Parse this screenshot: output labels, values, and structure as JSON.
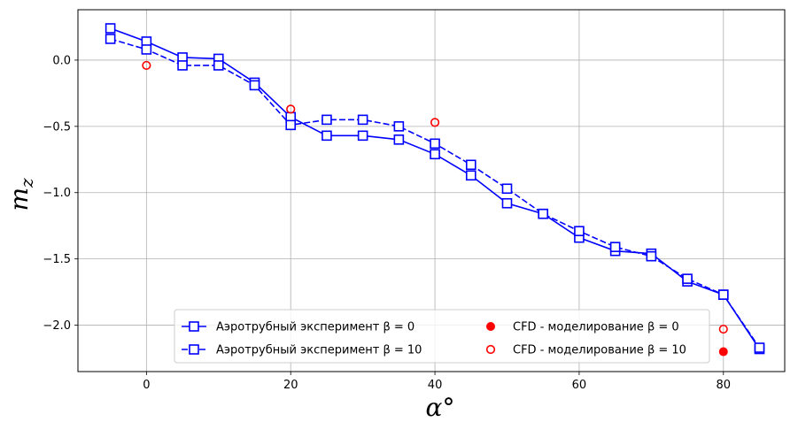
{
  "chart_data": {
    "type": "line",
    "xlabel": "α°",
    "ylabel": "m_z",
    "xlim": [
      -9.5,
      88.5
    ],
    "ylim": [
      -2.35,
      0.38
    ],
    "xticks": [
      0,
      20,
      40,
      60,
      80
    ],
    "yticks": [
      0.0,
      -0.5,
      -1.0,
      -1.5,
      -2.0
    ],
    "xtick_labels": [
      "0",
      "20",
      "40",
      "60",
      "80"
    ],
    "ytick_labels": [
      "0.0",
      "−0.5",
      "−1.0",
      "−1.5",
      "−2.0"
    ],
    "grid": true,
    "legend_position": "bottom-center",
    "series": [
      {
        "name": "Аэротрубный эксперимент β = 0",
        "style": "solid",
        "marker": "square-open",
        "color": "#0000ff",
        "x": [
          -5,
          0,
          5,
          10,
          15,
          20,
          25,
          30,
          35,
          40,
          45,
          50,
          55,
          60,
          65,
          70,
          75,
          80,
          85
        ],
        "y": [
          0.24,
          0.14,
          0.02,
          0.01,
          -0.17,
          -0.43,
          -0.57,
          -0.57,
          -0.6,
          -0.71,
          -0.87,
          -1.08,
          -1.16,
          -1.34,
          -1.44,
          -1.46,
          -1.67,
          -1.77,
          -2.18
        ]
      },
      {
        "name": "Аэротрубный эксперимент β = 10",
        "style": "dashed",
        "marker": "square-open",
        "color": "#0000ff",
        "x": [
          -5,
          0,
          5,
          10,
          15,
          20,
          25,
          30,
          35,
          40,
          45,
          50,
          55,
          60,
          65,
          70,
          75,
          80,
          85
        ],
        "y": [
          0.16,
          0.08,
          -0.04,
          -0.04,
          -0.19,
          -0.49,
          -0.45,
          -0.45,
          -0.5,
          -0.63,
          -0.79,
          -0.97,
          -1.16,
          -1.29,
          -1.41,
          -1.48,
          -1.65,
          -1.77,
          -2.17
        ]
      },
      {
        "name": "CFD - моделирование β = 0",
        "style": "none",
        "marker": "circle-filled",
        "color": "#ff0000",
        "x": [
          80
        ],
        "y": [
          -2.2
        ]
      },
      {
        "name": "CFD - моделирование β = 10",
        "style": "none",
        "marker": "circle-open",
        "color": "#ff0000",
        "x": [
          0,
          20,
          40,
          80
        ],
        "y": [
          -0.04,
          -0.37,
          -0.47,
          -2.03
        ]
      }
    ]
  }
}
